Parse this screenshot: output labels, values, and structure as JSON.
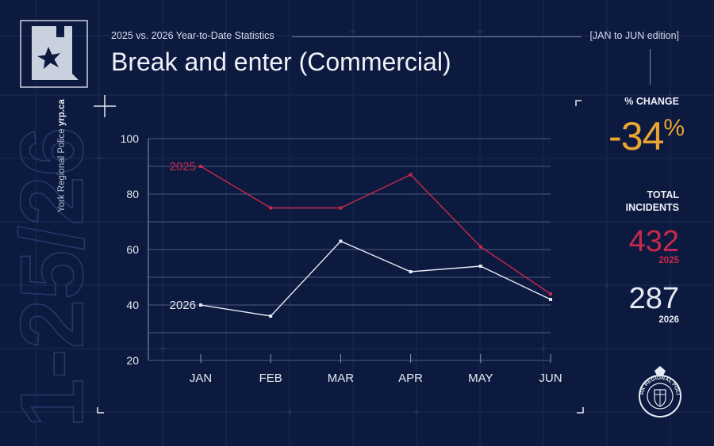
{
  "header": {
    "subtitle": "2025 vs. 2026 Year-to-Date Statistics",
    "edition": "[JAN to JUN edition]",
    "title": "Break and enter (Commercial)"
  },
  "branding": {
    "vertical_name": "York Regional Police",
    "vertical_url": "yrp.ca",
    "big_outline_text": "1-25/26",
    "seal_name": "YORK REGIONAL POLICE"
  },
  "stats": {
    "pct_change_label": "% CHANGE",
    "pct_change_value": "-34",
    "pct_sign": "%",
    "total_label_line1": "TOTAL",
    "total_label_line2": "INCIDENTS",
    "total_2025": "432",
    "year_2025": "2025",
    "total_2026": "287",
    "year_2026": "2026"
  },
  "colors": {
    "background": "#0d1a40",
    "series_2025": "#c8284a",
    "series_2026": "#e6eaf2",
    "accent": "#e9a530"
  },
  "chart_data": {
    "type": "line",
    "categories": [
      "JAN",
      "FEB",
      "MAR",
      "APR",
      "MAY",
      "JUN"
    ],
    "series": [
      {
        "name": "2025",
        "values": [
          90,
          75,
          75,
          87,
          61,
          44
        ]
      },
      {
        "name": "2026",
        "values": [
          40,
          36,
          63,
          52,
          54,
          42
        ]
      }
    ],
    "ylim": [
      20,
      100
    ],
    "yticks": [
      20,
      40,
      60,
      80,
      100
    ],
    "grid": true
  }
}
